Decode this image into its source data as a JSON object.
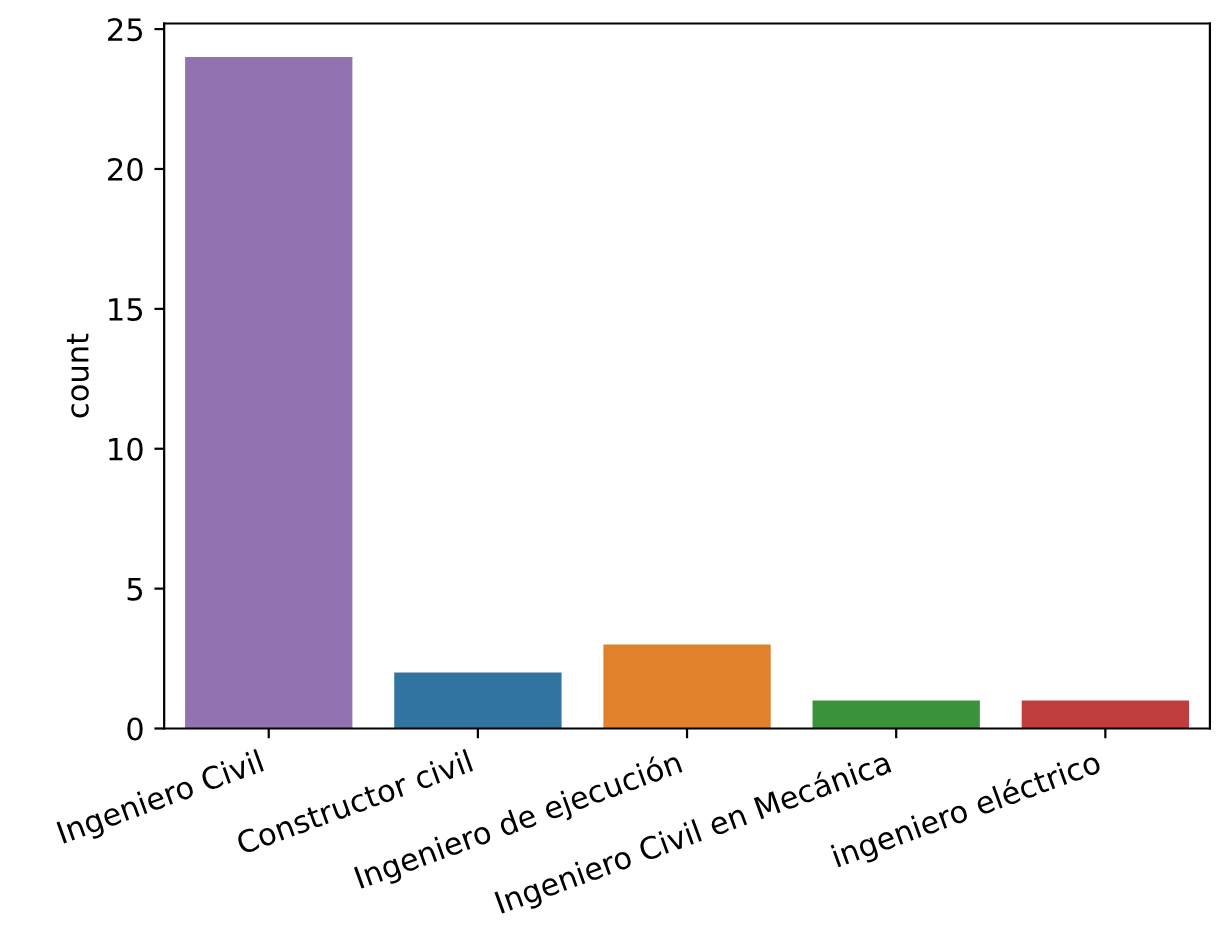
{
  "chart_data": {
    "type": "bar",
    "ylabel": "count",
    "categories": [
      "Ingeniero Civil",
      "Constructor civil",
      "Ingeniero de ejecución",
      "Ingeniero Civil en Mecánica",
      "ingeniero eléctrico"
    ],
    "values": [
      24,
      2,
      3,
      1,
      1
    ],
    "colors": [
      "#9372b2",
      "#3274a1",
      "#e1812c",
      "#3a923a",
      "#c03d3e"
    ],
    "ylim": [
      0,
      25.2
    ],
    "yticks": [
      0,
      5,
      10,
      15,
      20,
      25
    ],
    "grid": false,
    "legend": false
  }
}
